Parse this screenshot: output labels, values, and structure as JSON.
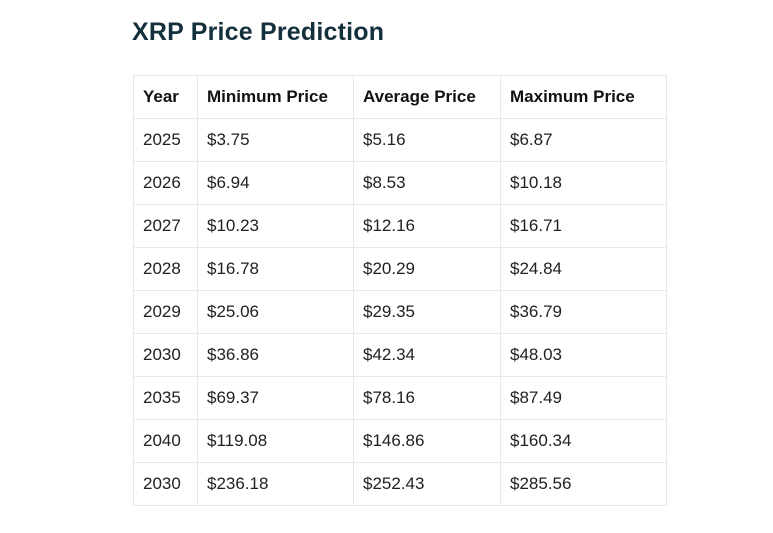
{
  "page": {
    "title": "XRP Price Prediction"
  },
  "colors": {
    "title_text": "#14303c",
    "header_text": "#111111",
    "cell_text": "#212121",
    "border": "#e8e8e8",
    "background": "#ffffff"
  },
  "chart_data": {
    "type": "table",
    "title": "XRP Price Prediction",
    "columns": [
      "Year",
      "Minimum Price",
      "Average Price",
      "Maximum Price"
    ],
    "rows": [
      [
        "2025",
        "$3.75",
        "$5.16",
        "$6.87"
      ],
      [
        "2026",
        "$6.94",
        "$8.53",
        "$10.18"
      ],
      [
        "2027",
        "$10.23",
        "$12.16",
        "$16.71"
      ],
      [
        "2028",
        "$16.78",
        "$20.29",
        "$24.84"
      ],
      [
        "2029",
        "$25.06",
        "$29.35",
        "$36.79"
      ],
      [
        "2030",
        "$36.86",
        "$42.34",
        "$48.03"
      ],
      [
        "2035",
        "$69.37",
        "$78.16",
        "$87.49"
      ],
      [
        "2040",
        "$119.08",
        "$146.86",
        "$160.34"
      ],
      [
        "2030",
        "$236.18",
        "$252.43",
        "$285.56"
      ]
    ]
  }
}
